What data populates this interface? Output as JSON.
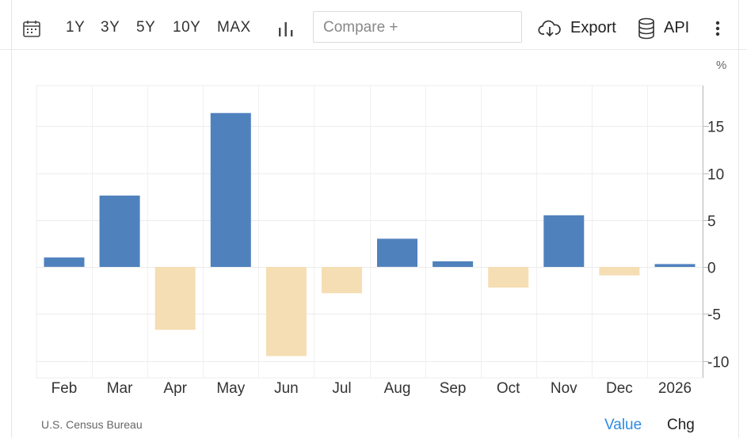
{
  "toolbar": {
    "ranges": [
      "1Y",
      "3Y",
      "5Y",
      "10Y",
      "MAX"
    ],
    "compare_placeholder": "Compare +",
    "export_label": "Export",
    "api_label": "API",
    "icons": [
      "calendar-icon",
      "bar-chart-icon",
      "cloud-download-icon",
      "database-icon",
      "more-vertical-icon"
    ]
  },
  "footer": {
    "source": "U.S. Census Bureau",
    "mode_value": "Value",
    "mode_chg": "Chg"
  },
  "colors": {
    "positive": "#4f81bd",
    "negative": "#f5deb3",
    "active_mode": "#2f8ae0"
  },
  "chart_data": {
    "type": "bar",
    "unit": "%",
    "categories": [
      "Feb",
      "Mar",
      "Apr",
      "May",
      "Jun",
      "Jul",
      "Aug",
      "Sep",
      "Oct",
      "Nov",
      "Dec",
      "2026"
    ],
    "values": [
      1.0,
      7.6,
      -6.7,
      16.4,
      -9.5,
      -2.8,
      3.0,
      0.6,
      -2.2,
      5.5,
      -0.9,
      0.3
    ],
    "yticks": [
      15,
      10,
      5,
      0,
      -5,
      -10
    ],
    "ylim": [
      -10.5,
      19.2
    ],
    "grid": true,
    "y_axis_side": "right"
  }
}
